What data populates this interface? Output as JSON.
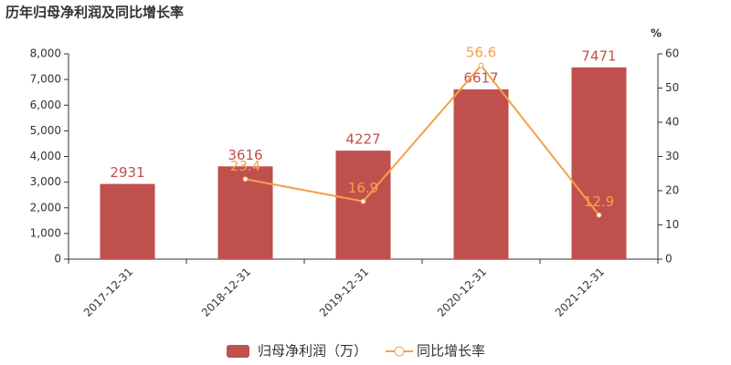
{
  "chart_data": {
    "type": "bar",
    "title": "历年归母净利润及同比增长率",
    "categories": [
      "2017-12-31",
      "2018-12-31",
      "2019-12-31",
      "2020-12-31",
      "2021-12-31"
    ],
    "series": [
      {
        "name": "归母净利润（万）",
        "type": "bar",
        "color": "#c0504d",
        "values": [
          2931,
          3616,
          4227,
          6617,
          7471
        ]
      },
      {
        "name": "同比增长率",
        "type": "line",
        "axis": "y2",
        "color": "#f5a04a",
        "values": [
          null,
          23.4,
          16.9,
          56.6,
          12.9
        ]
      }
    ],
    "ylim": [
      0,
      8000
    ],
    "yticks": [
      0,
      {
        "value": 1000,
        "label": "1,000"
      },
      {
        "value": 2000,
        "label": "2,000"
      },
      {
        "value": 3000,
        "label": "3,000"
      },
      {
        "value": 4000,
        "label": "4,000"
      },
      {
        "value": 5000,
        "label": "5,000"
      },
      {
        "value": 6000,
        "label": "6,000"
      },
      {
        "value": 7000,
        "label": "7,000"
      },
      {
        "value": 8000,
        "label": "8,000"
      }
    ],
    "y2label": "%",
    "y2lim": [
      0,
      60
    ],
    "y2ticks": [
      0,
      10,
      20,
      30,
      40,
      50,
      60
    ],
    "legend": "bottom"
  }
}
